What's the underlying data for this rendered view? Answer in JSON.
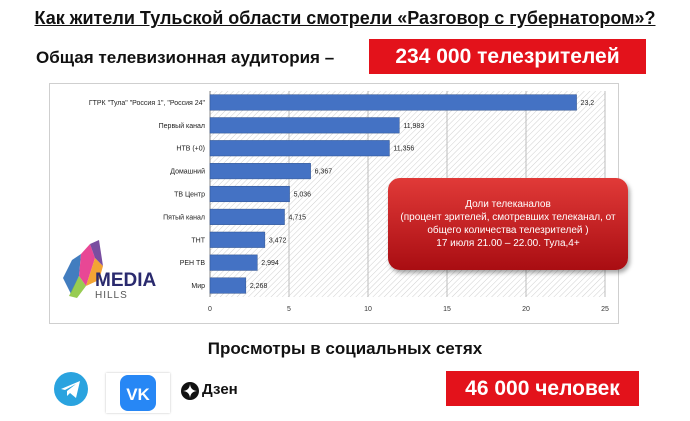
{
  "headline": "Как жители Тульской области смотрели «Разговор с губернатором»?",
  "audience": {
    "label": "Общая телевизионная аудитория  –",
    "value": "234 000 телезрителей"
  },
  "callout": {
    "title": "Доли телеканалов",
    "body": "(процент зрителей, смотревших телеканал, от общего количества телезрителей )",
    "period": "17 июля 21.00 – 22.00. Тула,4+"
  },
  "logo": {
    "name": "MEDIA",
    "sub": "HILLS"
  },
  "social": {
    "title": "Просмотры в социальных сетях",
    "dzen_label": "Дзен",
    "value": "46 000 человек"
  },
  "colors": {
    "bar": "#4472c4",
    "highlight": "#e3121b",
    "callout": "#c8171d"
  },
  "chart_data": {
    "type": "bar",
    "orientation": "horizontal",
    "categories": [
      "ГТРК \"Тула\" \"Россия 1\", \"Россия 24\"",
      "Первый канал",
      "НТВ (+0)",
      "Домашний",
      "ТВ Центр",
      "Пятый канал",
      "ТНТ",
      "РЕН ТВ",
      "Мир"
    ],
    "values": [
      23.2,
      11.983,
      11.356,
      6.367,
      5.036,
      4.715,
      3.472,
      2.994,
      2.268
    ],
    "value_labels": [
      "23,2",
      "11,983",
      "11,356",
      "6,367",
      "5,036",
      "4,715",
      "3,472",
      "2,994",
      "2,268"
    ],
    "xticks": [
      "0",
      "5",
      "10",
      "15",
      "20",
      "25"
    ],
    "xlim": [
      0,
      25
    ],
    "title": "",
    "xlabel": "",
    "ylabel": "",
    "grid": true,
    "legend": "none"
  }
}
